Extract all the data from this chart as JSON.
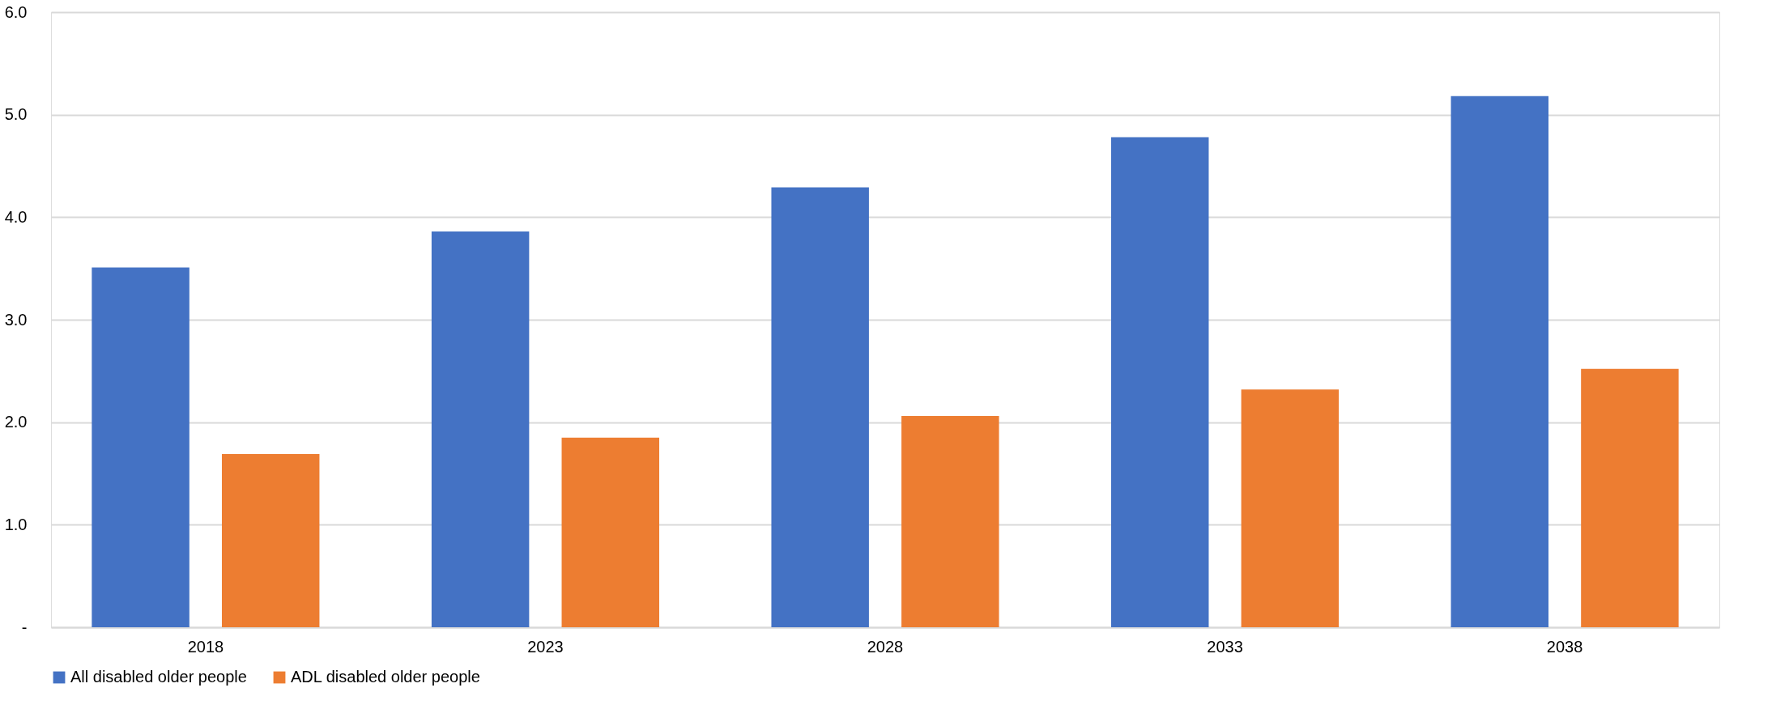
{
  "chart_data": {
    "type": "bar",
    "categories": [
      "2018",
      "2023",
      "2028",
      "2033",
      "2038"
    ],
    "series": [
      {
        "name": "All disabled older people",
        "color": "#4472c4",
        "values": [
          3.51,
          3.86,
          4.29,
          4.78,
          5.18
        ]
      },
      {
        "name": "ADL disabled older people",
        "color": "#ed7d31",
        "values": [
          1.69,
          1.85,
          2.06,
          2.32,
          2.52
        ]
      }
    ],
    "ylim": [
      0,
      6
    ],
    "yticks": [
      {
        "value": 0,
        "label": "-"
      },
      {
        "value": 1,
        "label": "1.0"
      },
      {
        "value": 2,
        "label": "2.0"
      },
      {
        "value": 3,
        "label": "3.0"
      },
      {
        "value": 4,
        "label": "4.0"
      },
      {
        "value": 5,
        "label": "5.0"
      },
      {
        "value": 6,
        "label": "6.0"
      }
    ],
    "grid": "y",
    "legend": "bottom"
  }
}
